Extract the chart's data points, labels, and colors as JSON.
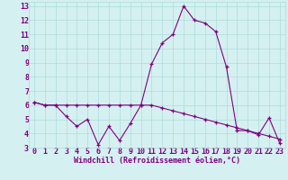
{
  "x": [
    0,
    1,
    2,
    3,
    4,
    5,
    6,
    7,
    8,
    9,
    10,
    11,
    12,
    13,
    14,
    15,
    16,
    17,
    18,
    19,
    20,
    21,
    22,
    23
  ],
  "line1": [
    6.2,
    6.0,
    6.0,
    5.2,
    4.5,
    5.0,
    3.2,
    4.5,
    3.5,
    4.7,
    6.0,
    8.9,
    10.4,
    11.0,
    13.0,
    12.0,
    11.8,
    11.2,
    8.7,
    4.2,
    4.2,
    3.9,
    5.1,
    3.3
  ],
  "line2": [
    6.2,
    6.0,
    6.0,
    6.0,
    6.0,
    6.0,
    6.0,
    6.0,
    6.0,
    6.0,
    6.0,
    6.0,
    5.8,
    5.6,
    5.4,
    5.2,
    5.0,
    4.8,
    4.6,
    4.4,
    4.2,
    4.0,
    3.8,
    3.6
  ],
  "line_color": "#800080",
  "bg_color": "#d5f0f0",
  "grid_color": "#aadddd",
  "text_color": "#800080",
  "xlim": [
    -0.5,
    23.5
  ],
  "ylim_min": 3,
  "ylim_max": 13.3,
  "yticks": [
    3,
    4,
    5,
    6,
    7,
    8,
    9,
    10,
    11,
    12,
    13
  ],
  "xticks": [
    0,
    1,
    2,
    3,
    4,
    5,
    6,
    7,
    8,
    9,
    10,
    11,
    12,
    13,
    14,
    15,
    16,
    17,
    18,
    19,
    20,
    21,
    22,
    23
  ],
  "xlabel": "Windchill (Refroidissement éolien,°C)",
  "xlabel_fontsize": 6.0,
  "tick_fontsize": 6.0
}
